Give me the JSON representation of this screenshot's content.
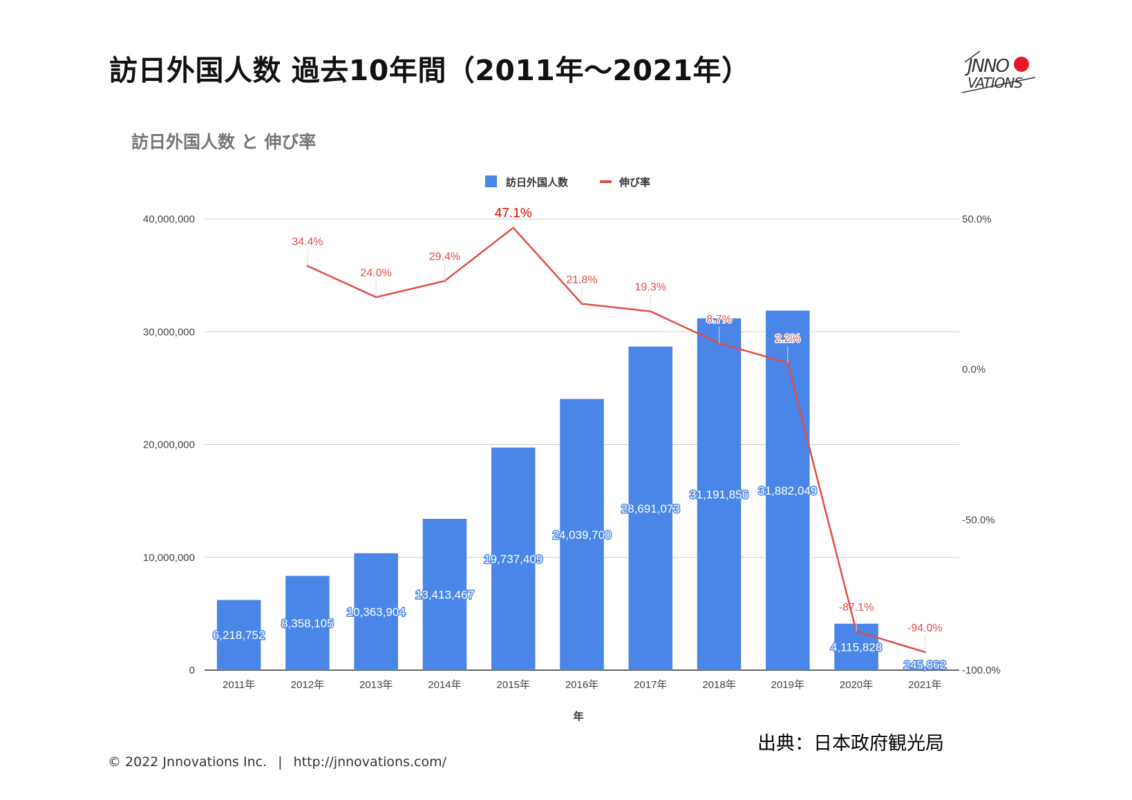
{
  "page_title": "訪日外国人数 過去10年間（2011年～2021年）",
  "logo": {
    "text_top": "JNNO",
    "text_bottom": "VATIONS",
    "colors": {
      "dot": "#e8172a",
      "ink": "#333333"
    }
  },
  "source": "出典：日本政府観光局",
  "footer": {
    "copyright": "© 2022 Jnnovations Inc.",
    "separator": "|",
    "url": "http://jnnovations.com/"
  },
  "colors": {
    "bar": "#4a86e8",
    "line": "#e34b43",
    "grid": "#cccccc",
    "peak_label": "#e00000"
  },
  "chart_data": {
    "type": "bar",
    "title": "訪日外国人数 と 伸び率",
    "xlabel": "年",
    "ylabel": "",
    "y2label": "",
    "categories": [
      "2011年",
      "2012年",
      "2013年",
      "2014年",
      "2015年",
      "2016年",
      "2017年",
      "2018年",
      "2019年",
      "2020年",
      "2021年"
    ],
    "ylim": [
      0,
      40000000
    ],
    "yticks": [
      0,
      10000000,
      20000000,
      30000000,
      40000000
    ],
    "ytick_labels": [
      "0",
      "10,000,000",
      "20,000,000",
      "30,000,000",
      "40,000,000"
    ],
    "y2lim": [
      -100,
      50
    ],
    "y2ticks": [
      -100,
      -50,
      0,
      50
    ],
    "y2tick_labels": [
      "-100.0%",
      "-50.0%",
      "0.0%",
      "50.0%"
    ],
    "legend_position": "top-center",
    "grid": true,
    "series": [
      {
        "name": "訪日外国人数",
        "type": "bar",
        "axis": "left",
        "values": [
          6218752,
          8358105,
          10363904,
          13413467,
          19737409,
          24039700,
          28691073,
          31191856,
          31882049,
          4115828,
          245862
        ],
        "labels": [
          "6,218,752",
          "8,358,105",
          "10,363,904",
          "13,413,467",
          "19,737,409",
          "24,039,700",
          "28,691,073",
          "31,191,856",
          "31,882,049",
          "4,115,828",
          "245,862"
        ]
      },
      {
        "name": "伸び率",
        "type": "line",
        "axis": "right",
        "values": [
          null,
          34.4,
          24.0,
          29.4,
          47.1,
          21.8,
          19.3,
          8.7,
          2.2,
          -87.1,
          -94.0
        ],
        "labels": [
          "",
          "34.4%",
          "24.0%",
          "29.4%",
          "47.1%",
          "21.8%",
          "19.3%",
          "8.7%",
          "2.2%",
          "-87.1%",
          "-94.0%"
        ]
      }
    ]
  }
}
